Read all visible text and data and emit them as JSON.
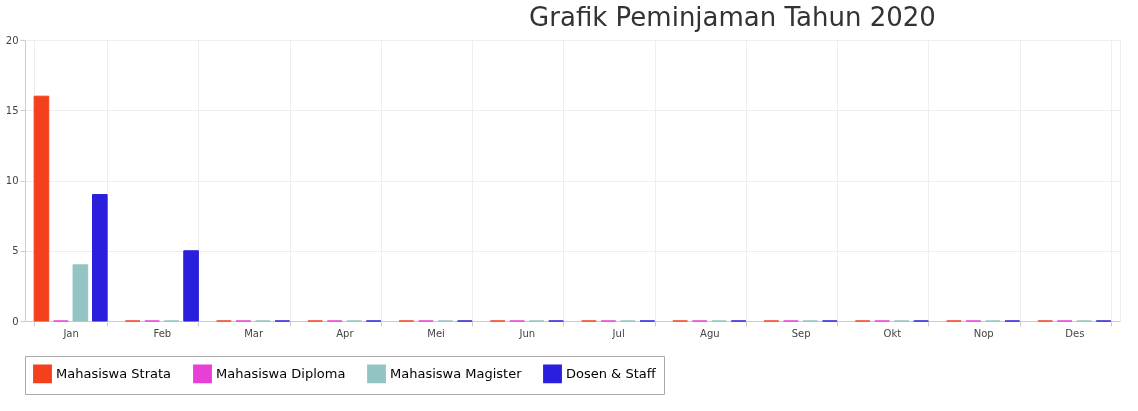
{
  "chart_data": {
    "type": "bar",
    "title": "Grafik Peminjaman Tahun 2020",
    "categories": [
      "Jan",
      "Feb",
      "Mar",
      "Apr",
      "Mei",
      "Jun",
      "Jul",
      "Agu",
      "Sep",
      "Okt",
      "Nop",
      "Des"
    ],
    "series": [
      {
        "name": "Mahasiswa Strata",
        "color": "#f5401e",
        "values": [
          16,
          0,
          0,
          0,
          0,
          0,
          0,
          0,
          0,
          0,
          0,
          0
        ]
      },
      {
        "name": "Mahasiswa Diploma",
        "color": "#e83fd6",
        "values": [
          0,
          0,
          0,
          0,
          0,
          0,
          0,
          0,
          0,
          0,
          0,
          0
        ]
      },
      {
        "name": "Mahasiswa Magister",
        "color": "#93c4c4",
        "values": [
          4,
          0,
          0,
          0,
          0,
          0,
          0,
          0,
          0,
          0,
          0,
          0
        ]
      },
      {
        "name": "Dosen & Staff",
        "color": "#2a1fdc",
        "values": [
          9,
          5,
          0,
          0,
          0,
          0,
          0,
          0,
          0,
          0,
          0,
          0
        ]
      }
    ],
    "ylim": [
      0,
      20
    ],
    "yticks": [
      0,
      5,
      10,
      15,
      20
    ],
    "grid": true,
    "legend": "bottom"
  }
}
